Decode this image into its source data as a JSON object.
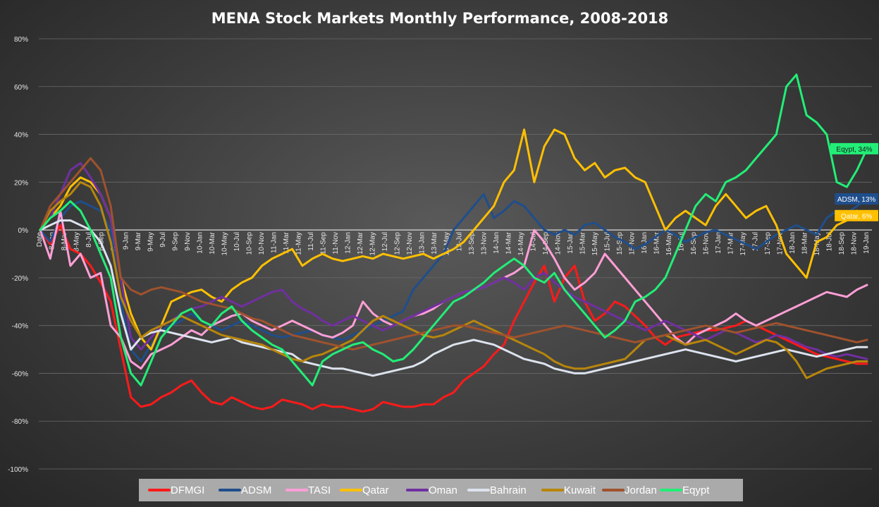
{
  "chart_data": {
    "type": "line",
    "title": "MENA Stock Markets Monthly Performance, 2008-2018",
    "xlabel": "",
    "ylabel": "",
    "ylim": [
      -100,
      80
    ],
    "yticks": [
      "80%",
      "60%",
      "40%",
      "20%",
      "0%",
      "-20%",
      "-40%",
      "-60%",
      "-80%",
      "-100%"
    ],
    "ytick_values": [
      80,
      60,
      40,
      20,
      0,
      -20,
      -40,
      -60,
      -80,
      -100
    ],
    "grid": true,
    "legend": "bottom",
    "x_tick_labels": [
      "Date",
      "8-Jan",
      "8-Mar",
      "8-May",
      "8-Jul",
      "8-Sep",
      "8-Nov",
      "9-Jan",
      "9-Mar",
      "9-May",
      "9-Jul",
      "9-Sep",
      "9-Nov",
      "10-Jan",
      "10-Mar",
      "10-May",
      "10-Jul",
      "10-Sep",
      "10-Nov",
      "11-Jan",
      "11-Mar",
      "11-May",
      "11-Jul",
      "11-Sep",
      "11-Nov",
      "12-Jan",
      "12-Mar",
      "12-May",
      "12-Jul",
      "12-Sep",
      "12-Nov",
      "13-Jan",
      "13-Mar",
      "13-May",
      "13-Jul",
      "13-Sep",
      "13-Nov",
      "14-Jan",
      "14-Mar",
      "14-May",
      "14-Jul",
      "14-Sep",
      "14-Nov",
      "15-Jan",
      "15-Mar",
      "15-May",
      "15-Jul",
      "15-Sep",
      "15-Nov",
      "16-Jan",
      "16-Mar",
      "16-May",
      "16-Jul",
      "16-Sep",
      "16-Nov",
      "17-Jan",
      "17-Mar",
      "17-May",
      "17-Jul",
      "17-Sep",
      "17-Nov",
      "18-Jan",
      "18-Mar",
      "18-May",
      "18-Jul",
      "18-Sep",
      "18-Nov",
      "19-Jan"
    ],
    "series": [
      {
        "name": "DFMGI",
        "color": "#ff1a1a",
        "values": [
          0,
          -6,
          2,
          -8,
          -10,
          -15,
          -22,
          -30,
          -50,
          -70,
          -74,
          -73,
          -70,
          -68,
          -65,
          -63,
          -68,
          -72,
          -73,
          -70,
          -72,
          -74,
          -75,
          -74,
          -71,
          -72,
          -73,
          -75,
          -73,
          -74,
          -74,
          -75,
          -76,
          -75,
          -72,
          -73,
          -74,
          -74,
          -73,
          -73,
          -70,
          -68,
          -63,
          -60,
          -57,
          -52,
          -48,
          -38,
          -30,
          -22,
          -15,
          -30,
          -20,
          -15,
          -30,
          -38,
          -35,
          -30,
          -32,
          -36,
          -40,
          -45,
          -48,
          -45,
          -44,
          -43,
          -42,
          -42,
          -41,
          -40,
          -38,
          -40,
          -42,
          -44,
          -46,
          -48,
          -50,
          -52,
          -53,
          -54,
          -55,
          -56,
          -56
        ]
      },
      {
        "name": "ADSM",
        "color": "#1f4e8c",
        "values": [
          0,
          -5,
          5,
          10,
          12,
          10,
          8,
          0,
          -30,
          -50,
          -55,
          -48,
          -42,
          -40,
          -38,
          -35,
          -38,
          -40,
          -42,
          -40,
          -38,
          -40,
          -42,
          -44,
          -45,
          -44,
          -43,
          -42,
          -44,
          -45,
          -46,
          -44,
          -42,
          -40,
          -38,
          -36,
          -34,
          -25,
          -20,
          -15,
          -10,
          0,
          5,
          10,
          15,
          5,
          8,
          12,
          10,
          5,
          0,
          -2,
          0,
          -2,
          2,
          3,
          0,
          -3,
          -5,
          -8,
          -6,
          -3,
          0,
          -2,
          -5,
          -3,
          -1,
          0,
          -2,
          -4,
          -6,
          -8,
          -5,
          -2,
          0,
          2,
          0,
          -2,
          5,
          8,
          7,
          10,
          13
        ]
      },
      {
        "name": "TASI",
        "color": "#ff9fd6",
        "values": [
          0,
          -12,
          8,
          -15,
          -10,
          -20,
          -18,
          -40,
          -45,
          -55,
          -58,
          -52,
          -50,
          -48,
          -45,
          -42,
          -44,
          -40,
          -38,
          -36,
          -35,
          -38,
          -40,
          -42,
          -40,
          -38,
          -40,
          -42,
          -44,
          -45,
          -43,
          -40,
          -30,
          -35,
          -38,
          -40,
          -38,
          -36,
          -35,
          -33,
          -30,
          -28,
          -26,
          -25,
          -24,
          -22,
          -20,
          -18,
          -15,
          0,
          -5,
          -12,
          -20,
          -25,
          -22,
          -18,
          -10,
          -15,
          -20,
          -25,
          -30,
          -35,
          -40,
          -45,
          -48,
          -44,
          -42,
          -40,
          -38,
          -35,
          -38,
          -40,
          -38,
          -36,
          -34,
          -32,
          -30,
          -28,
          -26,
          -27,
          -28,
          -25,
          -23
        ]
      },
      {
        "name": "Qatar",
        "color": "#ffc000",
        "values": [
          0,
          5,
          10,
          18,
          22,
          20,
          15,
          5,
          -20,
          -35,
          -45,
          -50,
          -40,
          -30,
          -28,
          -26,
          -25,
          -28,
          -30,
          -25,
          -22,
          -20,
          -15,
          -12,
          -10,
          -8,
          -15,
          -12,
          -10,
          -12,
          -13,
          -12,
          -11,
          -12,
          -10,
          -11,
          -12,
          -11,
          -10,
          -12,
          -10,
          -8,
          -5,
          0,
          5,
          10,
          20,
          25,
          42,
          20,
          35,
          42,
          40,
          30,
          25,
          28,
          22,
          25,
          26,
          22,
          20,
          10,
          0,
          5,
          8,
          5,
          2,
          10,
          15,
          10,
          5,
          8,
          10,
          2,
          -10,
          -15,
          -20,
          -5,
          -3,
          2,
          4,
          8,
          6
        ]
      },
      {
        "name": "Oman",
        "color": "#7030a0",
        "values": [
          0,
          5,
          15,
          25,
          28,
          22,
          15,
          5,
          -20,
          -45,
          -50,
          -45,
          -40,
          -38,
          -35,
          -33,
          -32,
          -30,
          -28,
          -30,
          -32,
          -30,
          -28,
          -26,
          -25,
          -30,
          -33,
          -35,
          -38,
          -40,
          -38,
          -36,
          -38,
          -40,
          -42,
          -40,
          -38,
          -36,
          -34,
          -32,
          -30,
          -28,
          -26,
          -25,
          -24,
          -22,
          -20,
          -22,
          -25,
          -20,
          -18,
          -22,
          -25,
          -28,
          -30,
          -32,
          -34,
          -36,
          -38,
          -40,
          -42,
          -40,
          -38,
          -40,
          -42,
          -44,
          -46,
          -44,
          -42,
          -43,
          -45,
          -47,
          -46,
          -44,
          -45,
          -47,
          -49,
          -50,
          -52,
          -53,
          -52,
          -53,
          -54
        ]
      },
      {
        "name": "Bahrain",
        "color": "#dde3ee",
        "values": [
          0,
          2,
          4,
          4,
          2,
          0,
          -5,
          -15,
          -35,
          -50,
          -45,
          -43,
          -42,
          -43,
          -44,
          -45,
          -46,
          -47,
          -46,
          -45,
          -47,
          -48,
          -49,
          -50,
          -51,
          -52,
          -55,
          -56,
          -57,
          -58,
          -58,
          -59,
          -60,
          -61,
          -60,
          -59,
          -58,
          -57,
          -55,
          -52,
          -50,
          -48,
          -47,
          -46,
          -47,
          -48,
          -50,
          -52,
          -54,
          -55,
          -56,
          -58,
          -59,
          -60,
          -60,
          -59,
          -58,
          -57,
          -56,
          -55,
          -54,
          -53,
          -52,
          -51,
          -50,
          -51,
          -52,
          -53,
          -54,
          -55,
          -54,
          -53,
          -52,
          -51,
          -50,
          -51,
          -52,
          -53,
          -52,
          -51,
          -50,
          -49,
          -49
        ]
      },
      {
        "name": "Kuwait",
        "color": "#b8860b",
        "values": [
          0,
          8,
          12,
          15,
          20,
          18,
          10,
          -5,
          -28,
          -38,
          -45,
          -42,
          -40,
          -38,
          -36,
          -38,
          -40,
          -42,
          -44,
          -45,
          -46,
          -47,
          -48,
          -50,
          -52,
          -54,
          -55,
          -53,
          -52,
          -50,
          -48,
          -46,
          -42,
          -38,
          -36,
          -38,
          -40,
          -42,
          -44,
          -45,
          -44,
          -42,
          -40,
          -38,
          -40,
          -42,
          -44,
          -46,
          -48,
          -50,
          -52,
          -55,
          -57,
          -58,
          -58,
          -57,
          -56,
          -55,
          -54,
          -50,
          -46,
          -45,
          -44,
          -46,
          -48,
          -47,
          -46,
          -48,
          -50,
          -52,
          -50,
          -48,
          -46,
          -47,
          -50,
          -55,
          -62,
          -60,
          -58,
          -57,
          -56,
          -55,
          -55
        ]
      },
      {
        "name": "Jordan",
        "color": "#a0522d",
        "values": [
          0,
          10,
          15,
          20,
          25,
          30,
          25,
          10,
          -20,
          -25,
          -27,
          -25,
          -24,
          -25,
          -26,
          -28,
          -30,
          -31,
          -32,
          -33,
          -35,
          -37,
          -38,
          -40,
          -42,
          -44,
          -45,
          -46,
          -47,
          -48,
          -49,
          -50,
          -49,
          -48,
          -47,
          -46,
          -45,
          -44,
          -43,
          -42,
          -41,
          -40,
          -40,
          -41,
          -42,
          -43,
          -44,
          -45,
          -44,
          -43,
          -42,
          -41,
          -40,
          -41,
          -42,
          -43,
          -44,
          -45,
          -46,
          -47,
          -46,
          -45,
          -44,
          -43,
          -42,
          -41,
          -40,
          -41,
          -42,
          -43,
          -42,
          -41,
          -40,
          -39,
          -40,
          -41,
          -42,
          -43,
          -44,
          -45,
          -46,
          -47,
          -46
        ]
      },
      {
        "name": "Eqypt",
        "color": "#22ee77",
        "values": [
          0,
          5,
          8,
          12,
          8,
          0,
          -10,
          -20,
          -45,
          -60,
          -65,
          -55,
          -45,
          -40,
          -35,
          -33,
          -38,
          -40,
          -35,
          -32,
          -38,
          -42,
          -45,
          -48,
          -50,
          -55,
          -60,
          -65,
          -55,
          -52,
          -50,
          -48,
          -47,
          -50,
          -52,
          -55,
          -54,
          -50,
          -45,
          -40,
          -35,
          -30,
          -28,
          -25,
          -22,
          -18,
          -15,
          -12,
          -15,
          -20,
          -22,
          -18,
          -25,
          -30,
          -35,
          -40,
          -45,
          -42,
          -38,
          -30,
          -28,
          -25,
          -20,
          -10,
          0,
          10,
          15,
          12,
          20,
          22,
          25,
          30,
          35,
          40,
          60,
          65,
          48,
          45,
          40,
          20,
          18,
          25,
          34
        ]
      }
    ],
    "end_labels": [
      {
        "series": "Eqypt",
        "text": "Eqypt, 34%",
        "bg": "#22ee77",
        "fg": "#1a1a1a"
      },
      {
        "series": "ADSM",
        "text": "ADSM, 13%",
        "bg": "#1f4e8c",
        "fg": "#ffffff"
      },
      {
        "series": "Qatar",
        "text": "Qatar, 6%",
        "bg": "#ffc000",
        "fg": "#ffffff"
      }
    ]
  }
}
